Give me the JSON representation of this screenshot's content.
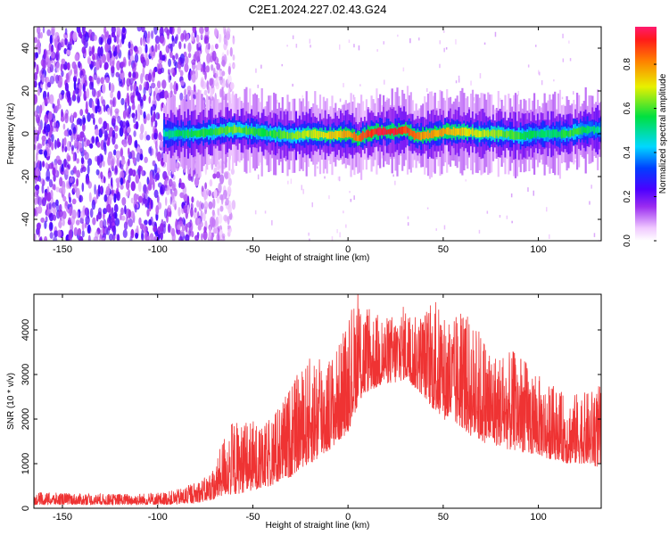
{
  "title": "C2E1.2024.227.02.43.G24",
  "chart_data": [
    {
      "type": "heatmap",
      "xlabel": "Height of straight line (km)",
      "ylabel": "Frequency (Hz)",
      "xlim": [
        -165,
        133
      ],
      "ylim": [
        -50,
        50
      ],
      "xticks": [
        -150,
        -100,
        -50,
        0,
        50,
        100
      ],
      "yticks": [
        -40,
        -20,
        0,
        20,
        40
      ],
      "colorbar": {
        "label": "Normalized spectral amplitude",
        "range": [
          0.0,
          0.97
        ],
        "ticks": [
          "0.0",
          "0.2",
          "0.4",
          "0.6",
          "0.8"
        ],
        "tick_values": [
          0.0,
          0.2,
          0.4,
          0.6,
          0.8
        ]
      },
      "ridge": {
        "x": [
          -97,
          -90,
          -80,
          -70,
          -60,
          -50,
          -40,
          -30,
          -20,
          -10,
          0,
          5,
          10,
          15,
          20,
          25,
          30,
          35,
          40,
          45,
          50,
          60,
          70,
          80,
          90,
          100,
          110,
          115,
          120,
          125,
          133
        ],
        "frequency": [
          0,
          0,
          0,
          1,
          2,
          1,
          0,
          -1,
          0,
          -1,
          0,
          -2,
          0,
          1,
          1,
          1,
          2,
          -1,
          -1,
          0,
          1,
          1,
          0,
          0,
          -1,
          0,
          0,
          0,
          1,
          2,
          2
        ],
        "amplitude": [
          0.5,
          0.55,
          0.6,
          0.6,
          0.65,
          0.6,
          0.6,
          0.65,
          0.7,
          0.75,
          0.8,
          0.85,
          0.9,
          0.95,
          0.95,
          0.95,
          0.9,
          0.85,
          0.8,
          0.8,
          0.8,
          0.75,
          0.7,
          0.65,
          0.6,
          0.55,
          0.55,
          0.6,
          0.6,
          0.55,
          0.5
        ]
      },
      "noise_region_x": [
        -165,
        -68
      ]
    },
    {
      "type": "line",
      "xlabel": "Height of straight line (km)",
      "ylabel": "SNR (10 * v/v)",
      "xlim": [
        -165,
        133
      ],
      "ylim": [
        0,
        4800
      ],
      "xticks": [
        -150,
        -100,
        -50,
        0,
        50,
        100
      ],
      "yticks": [
        0,
        1000,
        2000,
        3000,
        4000
      ],
      "series": [
        {
          "color": "#ef3333",
          "x": [
            -165,
            -150,
            -140,
            -130,
            -120,
            -110,
            -100,
            -95,
            -90,
            -85,
            -80,
            -75,
            -70,
            -65,
            -60,
            -55,
            -50,
            -45,
            -40,
            -35,
            -30,
            -25,
            -20,
            -15,
            -10,
            -5,
            0,
            5,
            10,
            15,
            20,
            25,
            30,
            35,
            40,
            45,
            50,
            55,
            60,
            65,
            70,
            75,
            80,
            85,
            90,
            95,
            100,
            105,
            110,
            115,
            120,
            125,
            133
          ],
          "envelope_low": [
            80,
            80,
            80,
            80,
            80,
            80,
            80,
            80,
            90,
            100,
            120,
            150,
            200,
            300,
            300,
            350,
            400,
            450,
            500,
            600,
            700,
            900,
            1000,
            1100,
            1300,
            1500,
            1700,
            2300,
            2600,
            2700,
            2800,
            2800,
            2900,
            2700,
            2500,
            2200,
            2000,
            1900,
            1800,
            1600,
            1500,
            1400,
            1400,
            1300,
            1300,
            1200,
            1200,
            1100,
            1100,
            1000,
            1000,
            1000,
            900
          ],
          "envelope_high": [
            350,
            350,
            330,
            320,
            330,
            340,
            350,
            380,
            420,
            500,
            600,
            700,
            900,
            1700,
            2000,
            1900,
            2000,
            1800,
            2100,
            2400,
            2800,
            3100,
            3400,
            3600,
            3400,
            3700,
            4200,
            4900,
            4500,
            4400,
            4300,
            4400,
            4600,
            4300,
            4500,
            4700,
            4400,
            4200,
            4500,
            4200,
            4000,
            3600,
            3500,
            3500,
            3600,
            3200,
            3000,
            2800,
            2700,
            2500,
            2600,
            2600,
            2800
          ]
        }
      ]
    }
  ]
}
